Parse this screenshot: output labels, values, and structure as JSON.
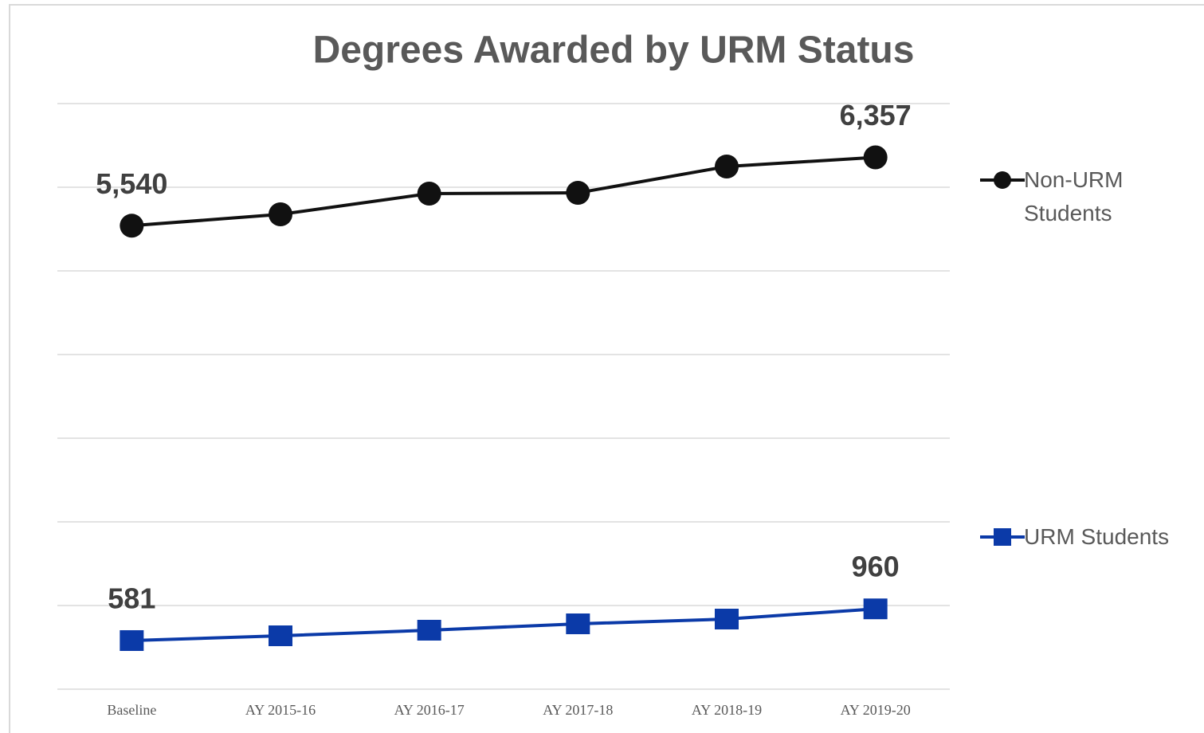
{
  "chart_data": {
    "type": "line",
    "title": "Degrees Awarded by URM Status",
    "categories": [
      "Baseline",
      "AY 2015-16",
      "AY 2016-17",
      "AY 2017-18",
      "AY 2018-19",
      "AY 2019-20"
    ],
    "series": [
      {
        "name": "Non-URM Students",
        "color": "#111111",
        "marker": "circle",
        "values": [
          5540,
          5676,
          5924,
          5933,
          6248,
          6357
        ],
        "value_labels": [
          "5,540",
          null,
          null,
          null,
          null,
          "6,357"
        ]
      },
      {
        "name": "URM Students",
        "color": "#0b3aa8",
        "marker": "square",
        "values": [
          581,
          638,
          705,
          781,
          838,
          960
        ],
        "value_labels": [
          "581",
          null,
          null,
          null,
          null,
          "960"
        ]
      }
    ],
    "ylim": [
      0,
      7000
    ],
    "yticks": [
      0,
      1000,
      2000,
      3000,
      4000,
      5000,
      6000,
      7000
    ],
    "grid": true,
    "legend": "right"
  }
}
